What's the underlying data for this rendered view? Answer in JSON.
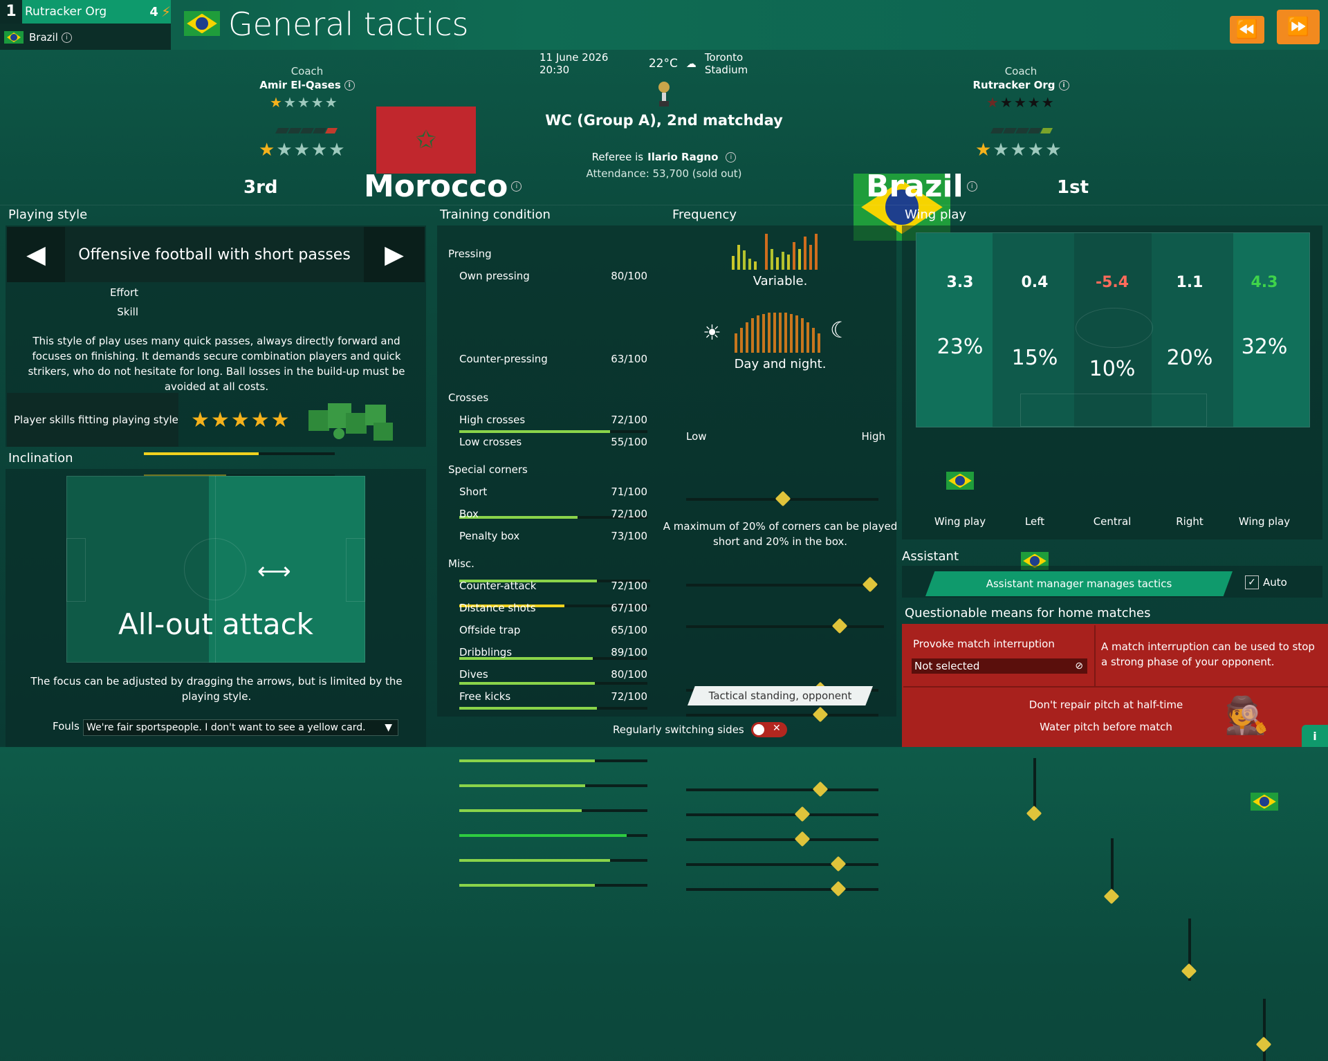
{
  "manager": {
    "rank": "1",
    "name": "Rutracker Org",
    "points": "4",
    "club": "Brazil"
  },
  "header": {
    "title": "General tactics"
  },
  "match": {
    "date": "11 June 2026 20:30",
    "temperature": "22°C",
    "stadium": "Toronto Stadium",
    "competition": "WC (Group A), 2nd matchday",
    "referee_label": "Referee is",
    "referee": "Ilario Ragno",
    "attendance": "Attendance: 53,700 (sold out)"
  },
  "home": {
    "coach_label": "Coach",
    "coach": "Amir El-Qases",
    "team": "Morocco",
    "rank": "3rd",
    "coach_stars": 1,
    "team_stars": 1
  },
  "away": {
    "coach_label": "Coach",
    "coach": "Rutracker Org",
    "team": "Brazil",
    "rank": "1st",
    "coach_stars": 0,
    "team_stars": 1
  },
  "playing_style": {
    "heading": "Playing style",
    "name": "Offensive football with short passes",
    "effort_label": "Effort",
    "effort": 0.6,
    "skill_label": "Skill",
    "skill": 0.43,
    "description": "This style of play uses many quick passes, always directly forward and focuses on finishing. It demands secure combination players and quick strikers, who do not hesitate for long. Ball losses in the build-up must be avoided at all costs.",
    "fit_label": "Player skills fitting playing style",
    "fit_stars": "★★★★★"
  },
  "inclination": {
    "heading": "Inclination",
    "value": "All-out attack",
    "note": "The focus can be adjusted by dragging the arrows, but is limited by the playing style.",
    "fouls_label": "Fouls",
    "fouls_value": "We're fair sportspeople. I don't want to see a yellow card."
  },
  "training": {
    "heading": "Training condition",
    "frequency_heading": "Frequency",
    "pressing_title": "Pressing",
    "own_pressing": {
      "label": "Own pressing",
      "value": "80/100",
      "fill": 0.8
    },
    "counter_pressing": {
      "label": "Counter-pressing",
      "value": "63/100",
      "fill": 0.63
    },
    "crosses_title": "Crosses",
    "high_crosses": {
      "label": "High crosses",
      "value": "72/100",
      "fill": 0.72
    },
    "low_crosses": {
      "label": "Low crosses",
      "value": "55/100",
      "fill": 0.55
    },
    "corners_title": "Special corners",
    "short": {
      "label": "Short",
      "value": "71/100",
      "fill": 0.71
    },
    "box": {
      "label": "Box",
      "value": "72/100",
      "fill": 0.72
    },
    "penalty_box": {
      "label": "Penalty box",
      "value": "73/100",
      "fill": 0.73
    },
    "misc_title": "Misc.",
    "counter_attack": {
      "label": "Counter-attack",
      "value": "72/100",
      "fill": 0.72
    },
    "distance_shots": {
      "label": "Distance shots",
      "value": "67/100",
      "fill": 0.67
    },
    "offside_trap": {
      "label": "Offside trap",
      "value": "65/100",
      "fill": 0.65
    },
    "dribblings": {
      "label": "Dribblings",
      "value": "89/100",
      "fill": 0.89
    },
    "dives": {
      "label": "Dives",
      "value": "80/100",
      "fill": 0.8
    },
    "free_kicks": {
      "label": "Free kicks",
      "value": "72/100",
      "fill": 0.72
    },
    "variable_label": "Variable.",
    "day_night_label": "Day and night.",
    "low_label": "Low",
    "high_label": "High",
    "corners_note": "A maximum of 20% of corners can be played short and 20% in the box.",
    "tactical_button": "Tactical standing, opponent",
    "switch_label": "Regularly switching sides"
  },
  "wing_play": {
    "heading": "Wing play",
    "values": [
      "3.3",
      "0.4",
      "-5.4",
      "1.1",
      "4.3"
    ],
    "percents": [
      "23%",
      "15%",
      "10%",
      "20%",
      "32%"
    ],
    "labels": [
      "Wing play",
      "Left",
      "Central",
      "Right",
      "Wing play"
    ]
  },
  "assistant": {
    "heading": "Assistant",
    "button": "Assistant manager manages tactics",
    "auto_label": "Auto"
  },
  "questionable": {
    "heading": "Questionable means for home matches",
    "provoke_label": "Provoke match interruption",
    "provoke_value": "Not selected",
    "provoke_note": "A match interruption can be used to stop a strong phase of your opponent.",
    "pitch_repair": "Don't repair pitch at half-time",
    "water_pitch": "Water pitch before match"
  },
  "colors": {
    "accent": "#f28a1f",
    "bar": "#8ad44a",
    "knob": "#e0c43b",
    "danger": "#a8211d"
  }
}
